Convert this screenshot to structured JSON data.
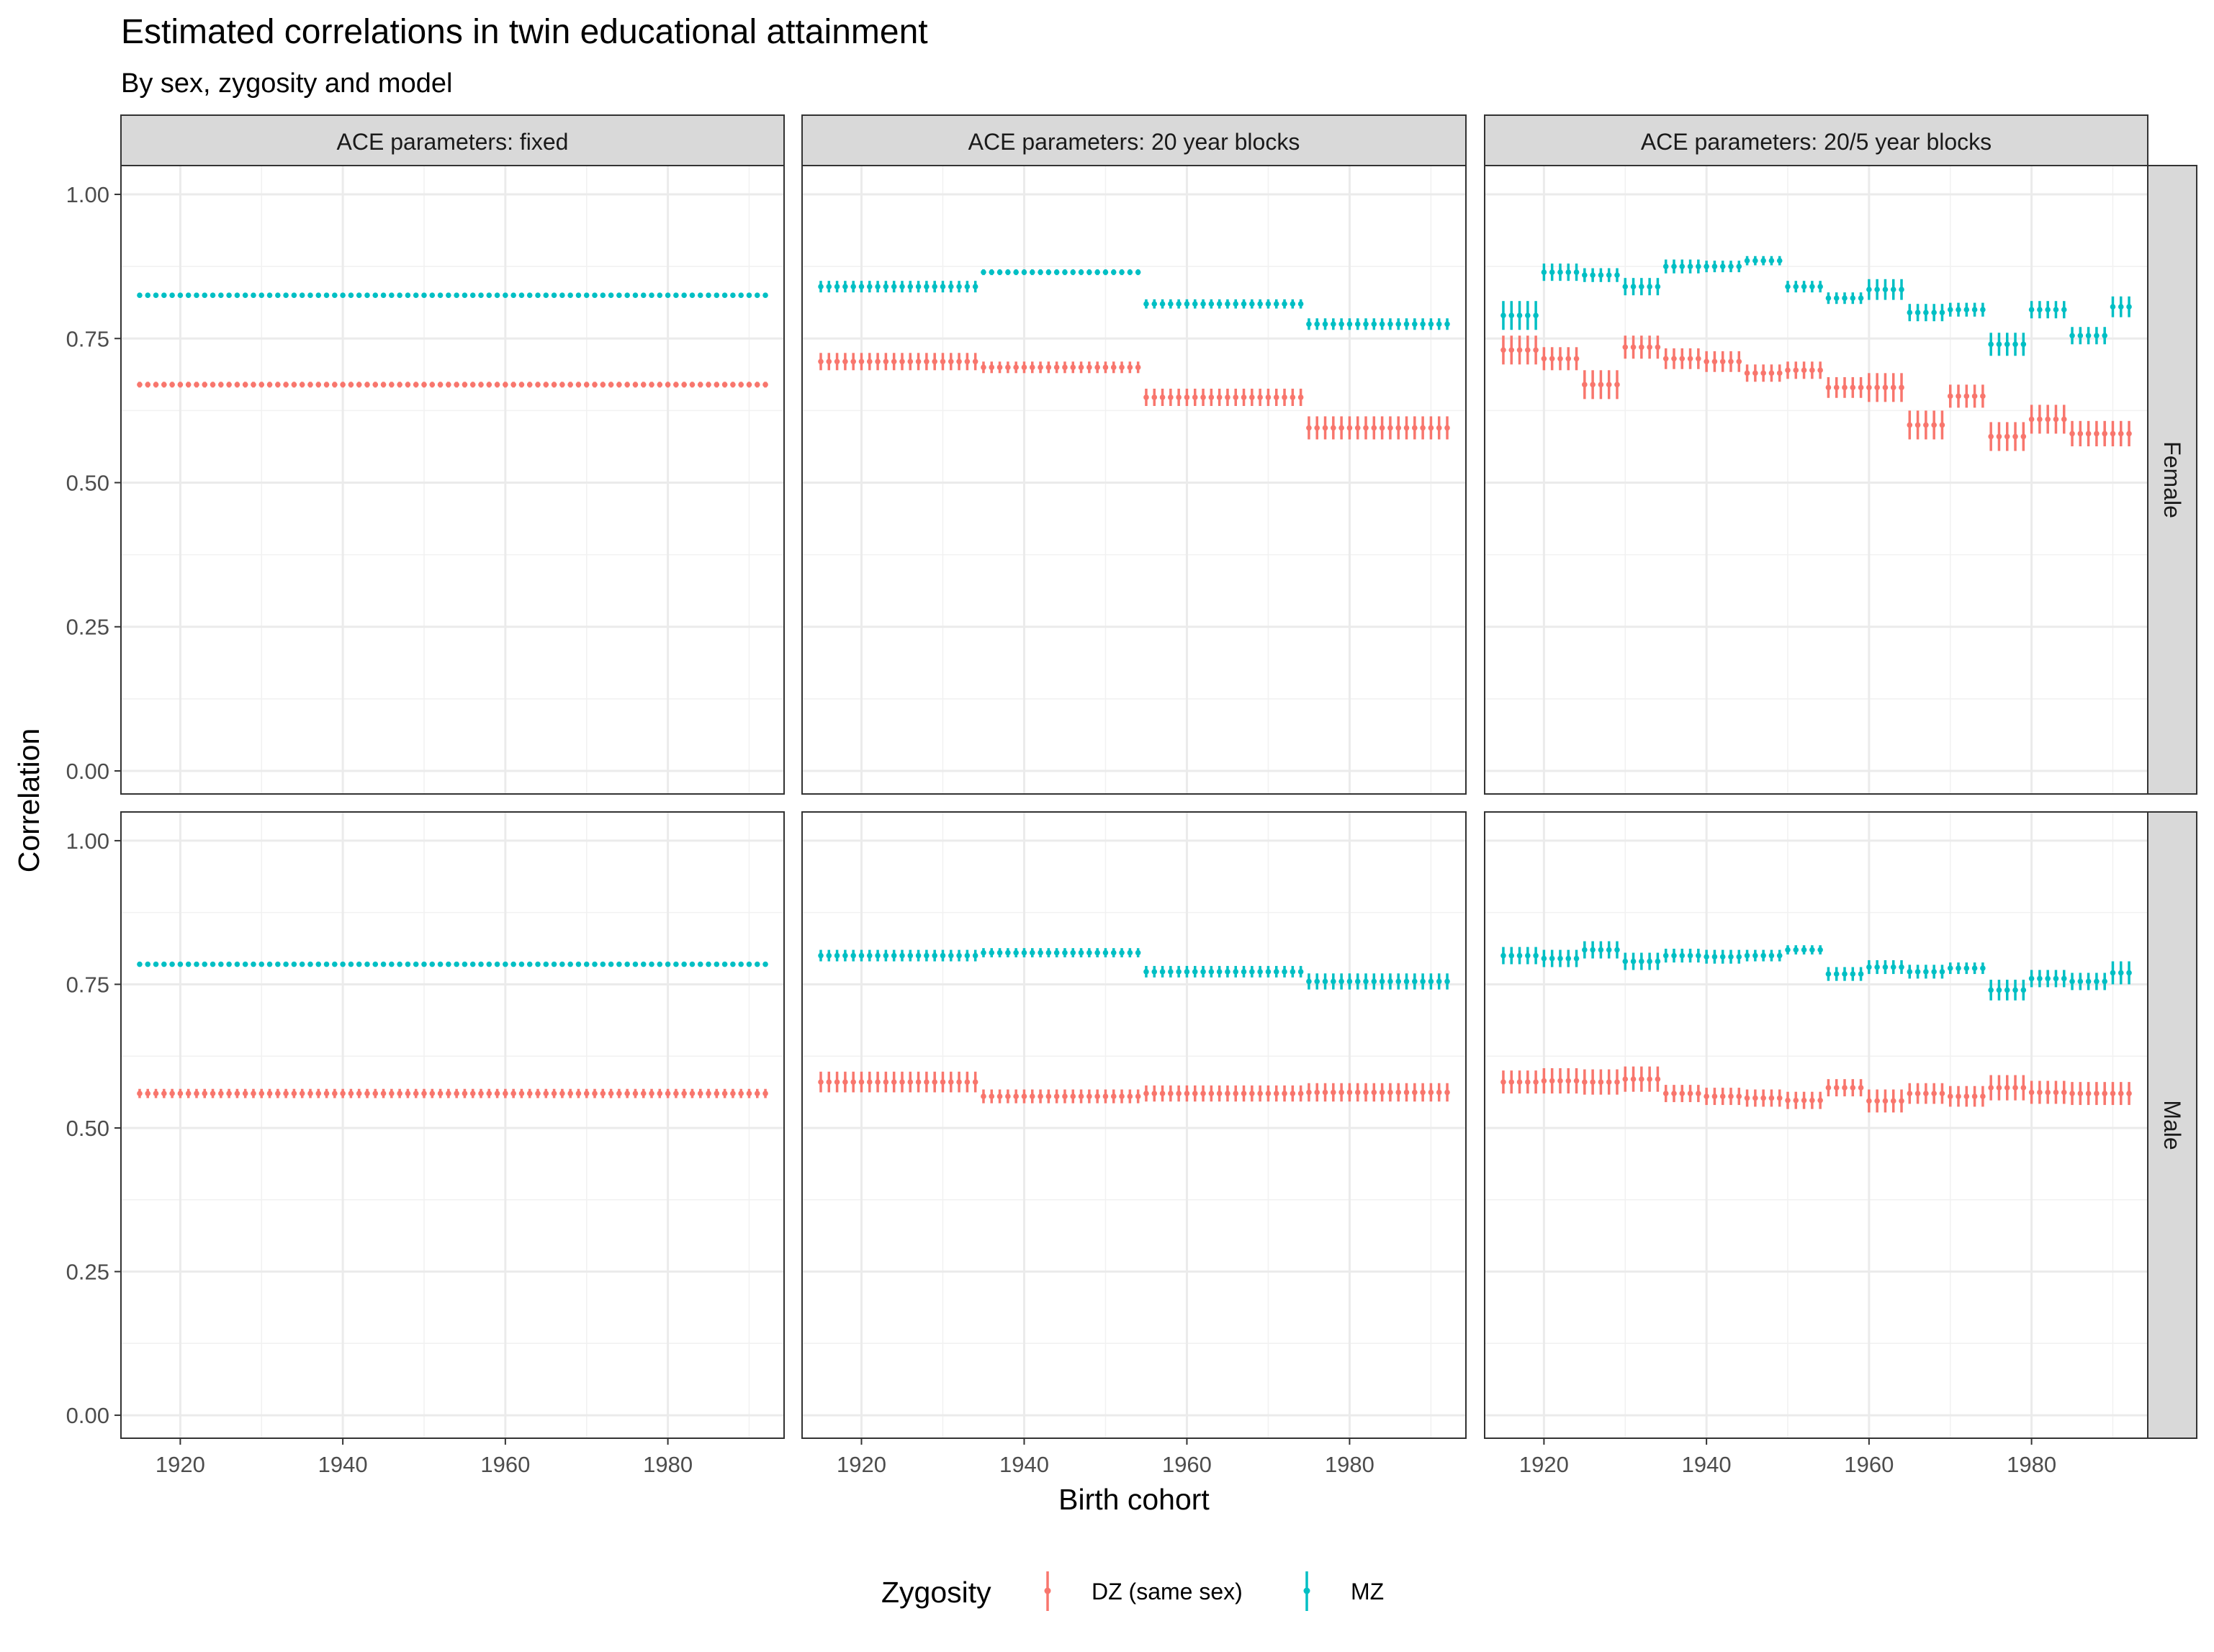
{
  "chart_data": {
    "type": "scatter",
    "title": "Estimated correlations in twin educational attainment",
    "subtitle": "By sex, zygosity and model",
    "xlabel": "Birth cohort",
    "ylabel": "Correlation",
    "x_range": [
      1915,
      1992
    ],
    "x_ticks": [
      1920,
      1940,
      1960,
      1980
    ],
    "y_range": [
      0.0,
      1.0
    ],
    "y_ticks": [
      "0.00",
      "0.25",
      "0.50",
      "0.75",
      "1.00"
    ],
    "grid": true,
    "legend": {
      "position": "bottom",
      "title": "Zygosity",
      "entries": [
        {
          "name": "DZ (same sex)",
          "color": "#F8766D"
        },
        {
          "name": "MZ",
          "color": "#00BFC4"
        }
      ]
    },
    "columns": [
      "ACE parameters: fixed",
      "ACE parameters: 20 year blocks",
      "ACE parameters: 20/5 year blocks"
    ],
    "rows": [
      "Female",
      "Male"
    ],
    "panels": [
      {
        "row": "Female",
        "column": "ACE parameters: fixed",
        "series": [
          {
            "name": "DZ (same sex)",
            "segments": [
              {
                "from": 1915,
                "to": 1992,
                "value": 0.67,
                "ci": 0.005
              }
            ]
          },
          {
            "name": "MZ",
            "segments": [
              {
                "from": 1915,
                "to": 1992,
                "value": 0.825,
                "ci": 0.004
              }
            ]
          }
        ]
      },
      {
        "row": "Female",
        "column": "ACE parameters: 20 year blocks",
        "series": [
          {
            "name": "DZ (same sex)",
            "segments": [
              {
                "from": 1915,
                "to": 1934,
                "value": 0.71,
                "ci": 0.015
              },
              {
                "from": 1935,
                "to": 1954,
                "value": 0.7,
                "ci": 0.01
              },
              {
                "from": 1955,
                "to": 1974,
                "value": 0.648,
                "ci": 0.015
              },
              {
                "from": 1975,
                "to": 1992,
                "value": 0.595,
                "ci": 0.02
              }
            ]
          },
          {
            "name": "MZ",
            "segments": [
              {
                "from": 1915,
                "to": 1934,
                "value": 0.84,
                "ci": 0.01
              },
              {
                "from": 1935,
                "to": 1954,
                "value": 0.865,
                "ci": 0.005
              },
              {
                "from": 1955,
                "to": 1974,
                "value": 0.81,
                "ci": 0.008
              },
              {
                "from": 1975,
                "to": 1992,
                "value": 0.775,
                "ci": 0.01
              }
            ]
          }
        ]
      },
      {
        "row": "Female",
        "column": "ACE parameters: 20/5 year blocks",
        "series": [
          {
            "name": "DZ (same sex)",
            "segments": [
              {
                "from": 1915,
                "to": 1919,
                "value": 0.73,
                "ci": 0.025
              },
              {
                "from": 1920,
                "to": 1924,
                "value": 0.715,
                "ci": 0.02
              },
              {
                "from": 1925,
                "to": 1929,
                "value": 0.67,
                "ci": 0.025
              },
              {
                "from": 1930,
                "to": 1934,
                "value": 0.735,
                "ci": 0.02
              },
              {
                "from": 1935,
                "to": 1939,
                "value": 0.715,
                "ci": 0.018
              },
              {
                "from": 1940,
                "to": 1944,
                "value": 0.71,
                "ci": 0.018
              },
              {
                "from": 1945,
                "to": 1949,
                "value": 0.69,
                "ci": 0.015
              },
              {
                "from": 1950,
                "to": 1954,
                "value": 0.695,
                "ci": 0.015
              },
              {
                "from": 1955,
                "to": 1959,
                "value": 0.665,
                "ci": 0.018
              },
              {
                "from": 1960,
                "to": 1964,
                "value": 0.665,
                "ci": 0.025
              },
              {
                "from": 1965,
                "to": 1969,
                "value": 0.6,
                "ci": 0.025
              },
              {
                "from": 1970,
                "to": 1974,
                "value": 0.65,
                "ci": 0.02
              },
              {
                "from": 1975,
                "to": 1979,
                "value": 0.58,
                "ci": 0.025
              },
              {
                "from": 1980,
                "to": 1984,
                "value": 0.61,
                "ci": 0.025
              },
              {
                "from": 1985,
                "to": 1992,
                "value": 0.585,
                "ci": 0.022
              }
            ]
          },
          {
            "name": "MZ",
            "segments": [
              {
                "from": 1915,
                "to": 1919,
                "value": 0.79,
                "ci": 0.025
              },
              {
                "from": 1920,
                "to": 1924,
                "value": 0.865,
                "ci": 0.015
              },
              {
                "from": 1925,
                "to": 1929,
                "value": 0.86,
                "ci": 0.012
              },
              {
                "from": 1930,
                "to": 1934,
                "value": 0.84,
                "ci": 0.015
              },
              {
                "from": 1935,
                "to": 1939,
                "value": 0.875,
                "ci": 0.012
              },
              {
                "from": 1940,
                "to": 1944,
                "value": 0.875,
                "ci": 0.01
              },
              {
                "from": 1945,
                "to": 1949,
                "value": 0.885,
                "ci": 0.008
              },
              {
                "from": 1950,
                "to": 1954,
                "value": 0.84,
                "ci": 0.01
              },
              {
                "from": 1955,
                "to": 1959,
                "value": 0.82,
                "ci": 0.01
              },
              {
                "from": 1960,
                "to": 1964,
                "value": 0.835,
                "ci": 0.018
              },
              {
                "from": 1965,
                "to": 1969,
                "value": 0.795,
                "ci": 0.015
              },
              {
                "from": 1970,
                "to": 1974,
                "value": 0.8,
                "ci": 0.012
              },
              {
                "from": 1975,
                "to": 1979,
                "value": 0.74,
                "ci": 0.02
              },
              {
                "from": 1980,
                "to": 1984,
                "value": 0.8,
                "ci": 0.015
              },
              {
                "from": 1985,
                "to": 1989,
                "value": 0.755,
                "ci": 0.015
              },
              {
                "from": 1990,
                "to": 1992,
                "value": 0.805,
                "ci": 0.018
              }
            ]
          }
        ]
      },
      {
        "row": "Male",
        "column": "ACE parameters: fixed",
        "series": [
          {
            "name": "DZ (same sex)",
            "segments": [
              {
                "from": 1915,
                "to": 1992,
                "value": 0.56,
                "ci": 0.008
              }
            ]
          },
          {
            "name": "MZ",
            "segments": [
              {
                "from": 1915,
                "to": 1992,
                "value": 0.785,
                "ci": 0.004
              }
            ]
          }
        ]
      },
      {
        "row": "Male",
        "column": "ACE parameters: 20 year blocks",
        "series": [
          {
            "name": "DZ (same sex)",
            "segments": [
              {
                "from": 1915,
                "to": 1934,
                "value": 0.58,
                "ci": 0.018
              },
              {
                "from": 1935,
                "to": 1954,
                "value": 0.555,
                "ci": 0.012
              },
              {
                "from": 1955,
                "to": 1974,
                "value": 0.56,
                "ci": 0.014
              },
              {
                "from": 1975,
                "to": 1992,
                "value": 0.562,
                "ci": 0.016
              }
            ]
          },
          {
            "name": "MZ",
            "segments": [
              {
                "from": 1915,
                "to": 1934,
                "value": 0.8,
                "ci": 0.01
              },
              {
                "from": 1935,
                "to": 1954,
                "value": 0.805,
                "ci": 0.008
              },
              {
                "from": 1955,
                "to": 1974,
                "value": 0.772,
                "ci": 0.01
              },
              {
                "from": 1975,
                "to": 1992,
                "value": 0.755,
                "ci": 0.014
              }
            ]
          }
        ]
      },
      {
        "row": "Male",
        "column": "ACE parameters: 20/5 year blocks",
        "series": [
          {
            "name": "DZ (same sex)",
            "segments": [
              {
                "from": 1915,
                "to": 1919,
                "value": 0.58,
                "ci": 0.02
              },
              {
                "from": 1920,
                "to": 1924,
                "value": 0.582,
                "ci": 0.022
              },
              {
                "from": 1925,
                "to": 1929,
                "value": 0.58,
                "ci": 0.022
              },
              {
                "from": 1930,
                "to": 1934,
                "value": 0.585,
                "ci": 0.022
              },
              {
                "from": 1935,
                "to": 1939,
                "value": 0.56,
                "ci": 0.015
              },
              {
                "from": 1940,
                "to": 1944,
                "value": 0.555,
                "ci": 0.015
              },
              {
                "from": 1945,
                "to": 1949,
                "value": 0.552,
                "ci": 0.015
              },
              {
                "from": 1950,
                "to": 1954,
                "value": 0.548,
                "ci": 0.015
              },
              {
                "from": 1955,
                "to": 1959,
                "value": 0.57,
                "ci": 0.015
              },
              {
                "from": 1960,
                "to": 1964,
                "value": 0.547,
                "ci": 0.02
              },
              {
                "from": 1965,
                "to": 1969,
                "value": 0.56,
                "ci": 0.018
              },
              {
                "from": 1970,
                "to": 1974,
                "value": 0.555,
                "ci": 0.018
              },
              {
                "from": 1975,
                "to": 1979,
                "value": 0.57,
                "ci": 0.022
              },
              {
                "from": 1980,
                "to": 1984,
                "value": 0.562,
                "ci": 0.02
              },
              {
                "from": 1985,
                "to": 1992,
                "value": 0.56,
                "ci": 0.02
              }
            ]
          },
          {
            "name": "MZ",
            "segments": [
              {
                "from": 1915,
                "to": 1919,
                "value": 0.8,
                "ci": 0.015
              },
              {
                "from": 1920,
                "to": 1924,
                "value": 0.795,
                "ci": 0.015
              },
              {
                "from": 1925,
                "to": 1929,
                "value": 0.81,
                "ci": 0.015
              },
              {
                "from": 1930,
                "to": 1934,
                "value": 0.79,
                "ci": 0.015
              },
              {
                "from": 1935,
                "to": 1939,
                "value": 0.8,
                "ci": 0.012
              },
              {
                "from": 1940,
                "to": 1944,
                "value": 0.798,
                "ci": 0.012
              },
              {
                "from": 1945,
                "to": 1949,
                "value": 0.8,
                "ci": 0.01
              },
              {
                "from": 1950,
                "to": 1954,
                "value": 0.81,
                "ci": 0.008
              },
              {
                "from": 1955,
                "to": 1959,
                "value": 0.768,
                "ci": 0.012
              },
              {
                "from": 1960,
                "to": 1964,
                "value": 0.78,
                "ci": 0.012
              },
              {
                "from": 1965,
                "to": 1969,
                "value": 0.772,
                "ci": 0.012
              },
              {
                "from": 1970,
                "to": 1974,
                "value": 0.778,
                "ci": 0.01
              },
              {
                "from": 1975,
                "to": 1979,
                "value": 0.74,
                "ci": 0.018
              },
              {
                "from": 1980,
                "to": 1984,
                "value": 0.76,
                "ci": 0.015
              },
              {
                "from": 1985,
                "to": 1989,
                "value": 0.755,
                "ci": 0.015
              },
              {
                "from": 1990,
                "to": 1992,
                "value": 0.77,
                "ci": 0.02
              }
            ]
          }
        ]
      }
    ]
  }
}
